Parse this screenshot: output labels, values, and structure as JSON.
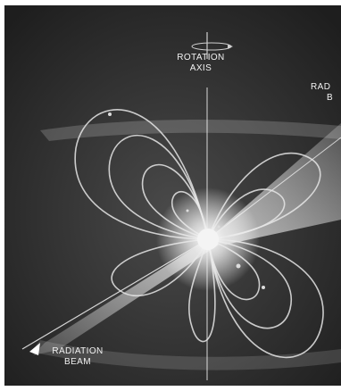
{
  "labels": {
    "rotation_axis": [
      "ROTATION",
      "AXIS"
    ],
    "radiation_beam_left": [
      "RADIATION",
      "BEAM"
    ],
    "radiation_beam_right_partial": [
      "RAD",
      "B"
    ]
  }
}
